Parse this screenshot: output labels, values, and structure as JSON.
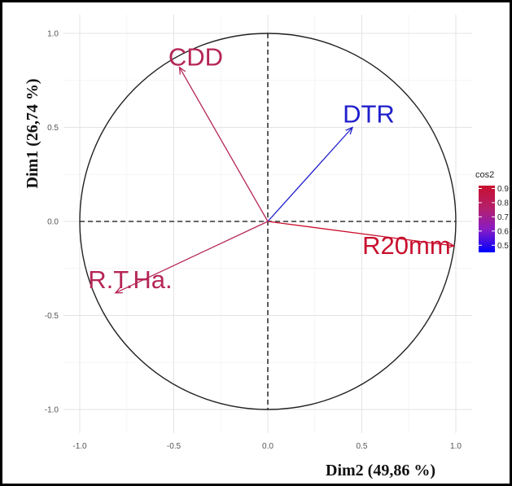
{
  "chart_data": {
    "type": "scatter",
    "subtype": "pca-variable-correlation-circle",
    "title": "",
    "xlabel": "Dim2 (49,86 %)",
    "ylabel": "Dim1 (26,74 %)",
    "xlim": [
      -1.0,
      1.0
    ],
    "ylim": [
      -1.0,
      1.0
    ],
    "x_ticks": [
      "-1.0",
      "-0.5",
      "0.0",
      "0.5",
      "1.0"
    ],
    "y_ticks": [
      "1.0",
      "0.5",
      "0.0",
      "-0.5",
      "-1.0"
    ],
    "grid": true,
    "unit_circle": true,
    "color_by": "cos2",
    "legend": {
      "title": "cos2",
      "placement": "right",
      "ticks": [
        "0.9",
        "0.8",
        "0.7",
        "0.6",
        "0.5"
      ],
      "tick_values": [
        0.9,
        0.8,
        0.7,
        0.6,
        0.5
      ],
      "range": [
        0.45,
        0.92
      ],
      "colors": [
        "#0000ff",
        "#c8102e"
      ]
    },
    "variables": [
      {
        "name": "CDD",
        "x": -0.47,
        "y": 0.82,
        "cos2": 0.78,
        "color": "#b52657"
      },
      {
        "name": "DTR",
        "x": 0.45,
        "y": 0.5,
        "cos2": 0.46,
        "color": "#1f1fcc"
      },
      {
        "name": "R20mm",
        "x": 0.99,
        "y": -0.13,
        "cos2": 0.92,
        "color": "#c8102e"
      },
      {
        "name": "R.T.Ha.",
        "x": -0.81,
        "y": -0.38,
        "cos2": 0.78,
        "color": "#b52657"
      }
    ]
  }
}
